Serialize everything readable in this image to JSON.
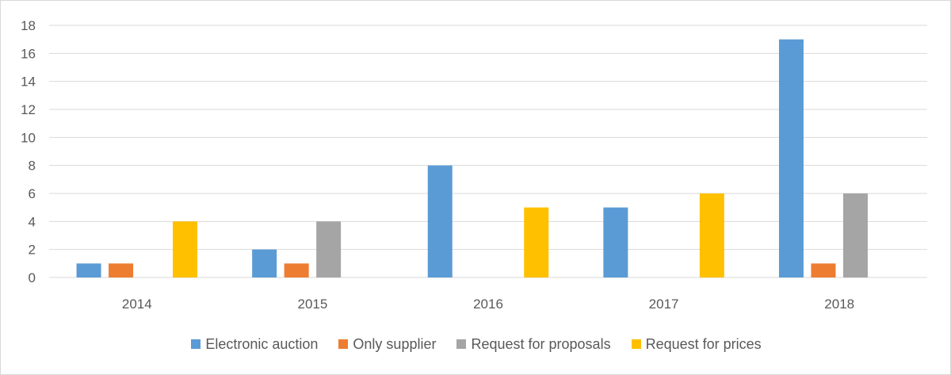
{
  "chart_data": {
    "type": "bar",
    "categories": [
      "2014",
      "2015",
      "2016",
      "2017",
      "2018"
    ],
    "series": [
      {
        "name": "Electronic auction",
        "color": "#5b9bd5",
        "values": [
          1,
          2,
          8,
          5,
          17
        ]
      },
      {
        "name": "Only supplier",
        "color": "#ed7d31",
        "values": [
          1,
          1,
          0,
          0,
          1
        ]
      },
      {
        "name": "Request for proposals",
        "color": "#a5a5a5",
        "values": [
          0,
          4,
          0,
          0,
          6
        ]
      },
      {
        "name": "Request for prices",
        "color": "#ffc000",
        "values": [
          4,
          0,
          5,
          6,
          0
        ]
      }
    ],
    "ylim": [
      0,
      18
    ],
    "yticks": [
      "0",
      "2",
      "4",
      "6",
      "8",
      "10",
      "12",
      "14",
      "16",
      "18"
    ],
    "grid": true,
    "legend_position": "bottom"
  }
}
